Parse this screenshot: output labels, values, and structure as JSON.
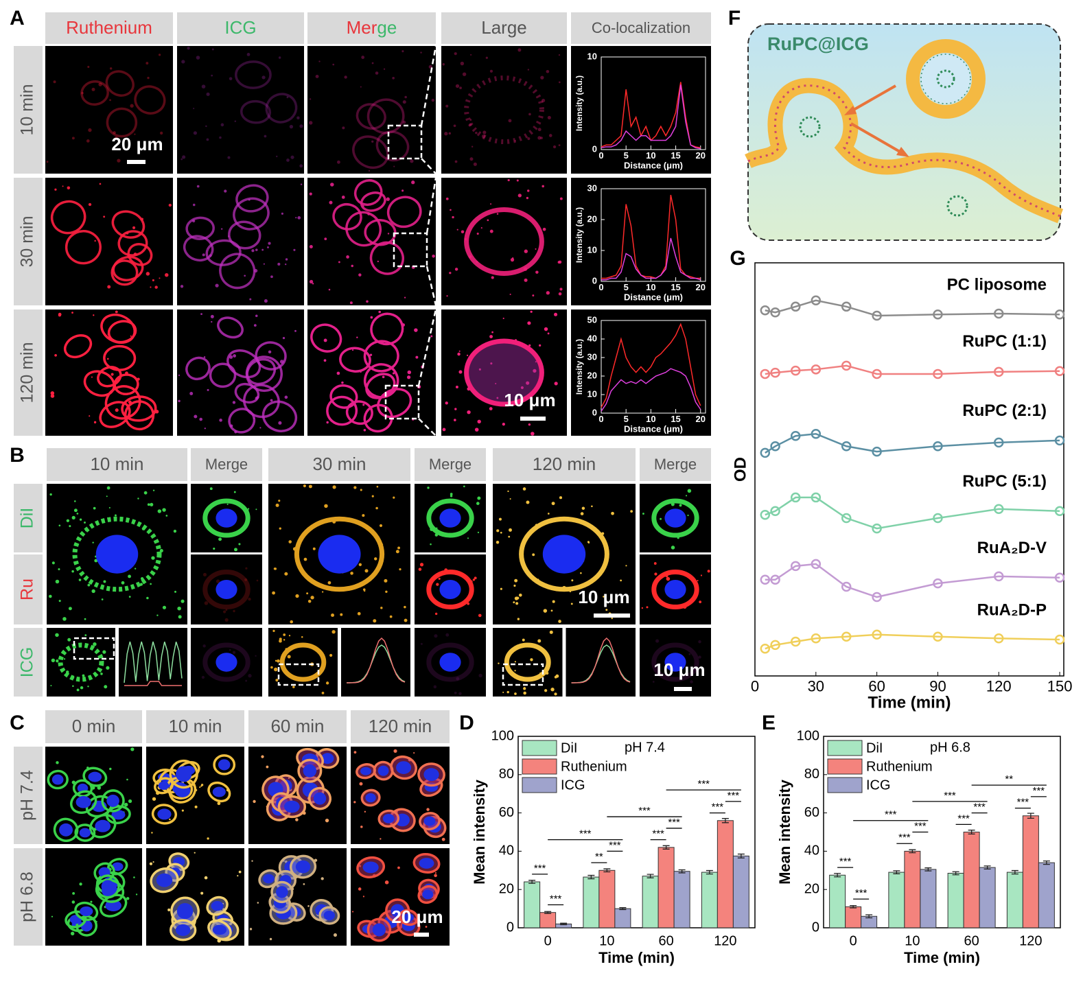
{
  "panel_labels": [
    "A",
    "B",
    "C",
    "D",
    "E",
    "F",
    "G"
  ],
  "panel_a": {
    "columns": [
      "Ruthenium",
      "ICG",
      "Merge",
      "Large",
      "Co-localization"
    ],
    "rows": [
      "10 min",
      "30 min",
      "120 min"
    ],
    "scale_bars": [
      "20 μm",
      "10 μm"
    ]
  },
  "panel_b": {
    "columns": [
      "10 min",
      "Merge",
      "30 min",
      "Merge",
      "120 min",
      "Merge"
    ],
    "rows": [
      "DiI",
      "Ru",
      "ICG"
    ],
    "scale_bars": [
      "10 μm",
      "10 μm"
    ]
  },
  "panel_c": {
    "columns": [
      "0 min",
      "10 min",
      "60 min",
      "120 min"
    ],
    "rows": [
      "pH 7.4",
      "pH 6.8"
    ],
    "scale_bar": "20 μm"
  },
  "panel_f": {
    "title": "RuPC@ICG"
  },
  "chart_data": [
    {
      "type": "line",
      "xlabel": "Distance (μm)",
      "ylabel": "Intensity (a.u.)",
      "x": [
        0,
        1,
        2,
        3,
        4,
        5,
        6,
        7,
        8,
        9,
        10,
        11,
        12,
        13,
        14,
        15,
        16,
        17,
        18,
        19,
        20
      ],
      "xlim": [
        0,
        21
      ],
      "xticks": [
        0,
        5,
        10,
        15,
        20
      ],
      "ylim": [
        0,
        10
      ],
      "yticks": [
        0,
        10
      ],
      "series": [
        {
          "color": "#ff2a2a",
          "values": [
            0.3,
            0.5,
            0.5,
            1,
            1.5,
            6.5,
            2.5,
            3.5,
            1.5,
            2.5,
            1,
            1.5,
            2.5,
            1.5,
            2.5,
            4,
            7.3,
            3.5,
            0.5,
            0.3,
            0.2
          ]
        },
        {
          "color": "#e040e0",
          "values": [
            0.2,
            0.3,
            0.3,
            0.5,
            1,
            2,
            1.5,
            1,
            1.5,
            1.5,
            1,
            1,
            1,
            1,
            1.5,
            2.5,
            7,
            3,
            0.5,
            0.2,
            0.1
          ]
        }
      ]
    },
    {
      "type": "line",
      "xlabel": "Distance (μm)",
      "ylabel": "Intensity (a.u.)",
      "x": [
        0,
        1,
        2,
        3,
        4,
        5,
        6,
        7,
        8,
        9,
        10,
        11,
        12,
        13,
        14,
        15,
        16,
        17,
        18,
        19,
        20
      ],
      "xlim": [
        0,
        21
      ],
      "xticks": [
        0,
        5,
        10,
        15,
        20
      ],
      "ylim": [
        0,
        30
      ],
      "yticks": [
        0,
        10,
        20,
        30
      ],
      "series": [
        {
          "color": "#ff2a2a",
          "values": [
            1,
            1,
            1.5,
            2,
            5,
            25,
            18,
            5,
            2,
            1.5,
            1.5,
            1,
            2,
            5,
            28,
            20,
            4,
            2,
            1.5,
            1,
            1
          ]
        },
        {
          "color": "#e040e0",
          "values": [
            0.5,
            0.5,
            1,
            1,
            3,
            9,
            8,
            4,
            2,
            1,
            1,
            1,
            2,
            4,
            14,
            8,
            3,
            2,
            1,
            1,
            0.5
          ]
        }
      ]
    },
    {
      "type": "line",
      "xlabel": "Distance (μm)",
      "ylabel": "Intensity (a.u.)",
      "x": [
        0,
        1,
        2,
        3,
        4,
        5,
        6,
        7,
        8,
        9,
        10,
        11,
        12,
        13,
        14,
        15,
        16,
        17,
        18,
        19,
        20
      ],
      "xlim": [
        0,
        21
      ],
      "xticks": [
        0,
        5,
        10,
        15,
        20
      ],
      "ylim": [
        0,
        50
      ],
      "yticks": [
        0,
        10,
        20,
        30,
        40,
        50
      ],
      "series": [
        {
          "color": "#ff2a2a",
          "values": [
            3,
            8,
            20,
            30,
            40,
            30,
            25,
            22,
            25,
            22,
            25,
            30,
            32,
            35,
            38,
            42,
            48,
            40,
            25,
            10,
            4
          ]
        },
        {
          "color": "#e040e0",
          "values": [
            1,
            5,
            12,
            15,
            18,
            16,
            17,
            16,
            18,
            16,
            18,
            20,
            21,
            22,
            24,
            23,
            22,
            20,
            14,
            6,
            2
          ]
        }
      ]
    },
    {
      "type": "bar",
      "subtitle": "pH 7.4",
      "xlabel": "Time (min)",
      "ylabel": "Mean intensity",
      "categories": [
        "0",
        "10",
        "60",
        "120"
      ],
      "ylim": [
        0,
        100
      ],
      "yticks": [
        0,
        20,
        40,
        60,
        80,
        100
      ],
      "series": [
        {
          "name": "DiI",
          "color": "#a8e6c1",
          "values": [
            24,
            26.5,
            27,
            29
          ],
          "errors": [
            0.8,
            0.9,
            0.9,
            0.9
          ]
        },
        {
          "name": "Ruthenium",
          "color": "#f4837d",
          "values": [
            8,
            30,
            42,
            56
          ],
          "errors": [
            0.5,
            0.8,
            0.9,
            1.1
          ]
        },
        {
          "name": "ICG",
          "color": "#9fa3cc",
          "values": [
            2,
            10,
            29.5,
            37.5
          ],
          "errors": [
            0.4,
            0.5,
            0.8,
            1.0
          ]
        }
      ],
      "annotations": [
        "***",
        "***",
        "***",
        "**",
        "***",
        "***",
        "***",
        "***",
        "***",
        "***",
        "***"
      ]
    },
    {
      "type": "bar",
      "subtitle": "pH 6.8",
      "xlabel": "Time (min)",
      "ylabel": "Mean intensity",
      "categories": [
        "0",
        "10",
        "60",
        "120"
      ],
      "ylim": [
        0,
        100
      ],
      "yticks": [
        0,
        20,
        40,
        60,
        80,
        100
      ],
      "series": [
        {
          "name": "DiI",
          "color": "#a8e6c1",
          "values": [
            27.5,
            29,
            28.5,
            29
          ],
          "errors": [
            0.9,
            0.8,
            0.8,
            0.9
          ]
        },
        {
          "name": "Ruthenium",
          "color": "#f4837d",
          "values": [
            11,
            40,
            50,
            58.5
          ],
          "errors": [
            0.6,
            0.8,
            1.0,
            1.3
          ]
        },
        {
          "name": "ICG",
          "color": "#9fa3cc",
          "values": [
            6,
            30.5,
            31.5,
            34
          ],
          "errors": [
            0.8,
            0.8,
            0.8,
            0.9
          ]
        }
      ],
      "annotations": [
        "***",
        "***",
        "***",
        "***",
        "***",
        "***",
        "***",
        "***",
        "**",
        "***",
        "***"
      ]
    },
    {
      "type": "line",
      "xlabel": "Time (min)",
      "ylabel": "OD",
      "x": [
        5,
        10,
        20,
        30,
        45,
        60,
        90,
        120,
        150
      ],
      "xlim": [
        0,
        152
      ],
      "xticks": [
        0,
        30,
        60,
        90,
        120,
        150
      ],
      "ylim": [
        0,
        10
      ],
      "series": [
        {
          "name": "PC liposome",
          "color": "#8c8c8c",
          "values": [
            8.85,
            8.8,
            8.94,
            9.09,
            8.94,
            8.72,
            8.75,
            8.77,
            8.75
          ]
        },
        {
          "name": "RuPC (1:1)",
          "color": "#f08080",
          "values": [
            7.31,
            7.34,
            7.39,
            7.42,
            7.51,
            7.31,
            7.31,
            7.36,
            7.38
          ]
        },
        {
          "name": "RuPC (2:1)",
          "color": "#5b8fa3",
          "values": [
            5.4,
            5.56,
            5.81,
            5.86,
            5.56,
            5.43,
            5.56,
            5.65,
            5.7
          ]
        },
        {
          "name": "RuPC (5:1)",
          "color": "#7fd1a8",
          "values": [
            3.9,
            3.99,
            4.32,
            4.32,
            3.82,
            3.57,
            3.82,
            4.04,
            3.99
          ]
        },
        {
          "name": "RuA₂D-V",
          "color": "#c39bd3",
          "values": [
            2.33,
            2.33,
            2.66,
            2.71,
            2.16,
            1.91,
            2.24,
            2.41,
            2.38
          ]
        },
        {
          "name": "RuA₂D-P",
          "color": "#f0cf5a",
          "values": [
            0.66,
            0.75,
            0.83,
            0.91,
            0.95,
            1.0,
            0.95,
            0.91,
            0.88
          ]
        }
      ]
    }
  ]
}
